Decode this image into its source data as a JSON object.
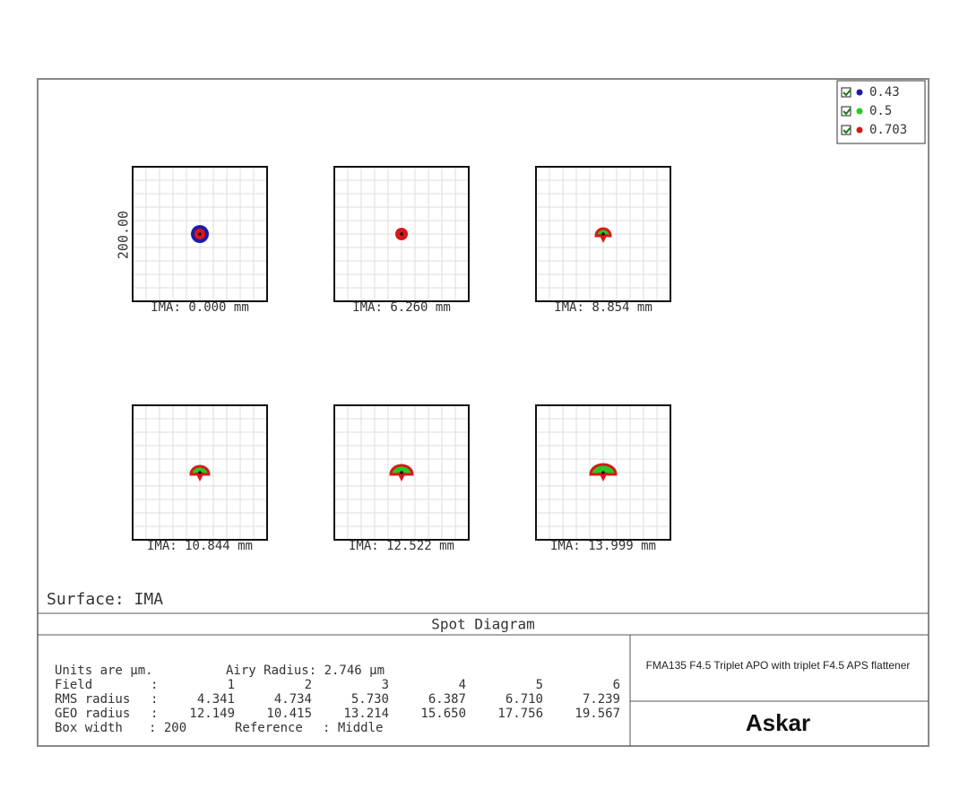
{
  "legend": [
    {
      "label": "0.43",
      "color": "#1c1ca8"
    },
    {
      "label": "0.5",
      "color": "#22cc22"
    },
    {
      "label": "0.703",
      "color": "#d81818"
    }
  ],
  "axis_label": "200.00",
  "panels": [
    "IMA: 0.000 mm",
    "IMA: 6.260 mm",
    "IMA: 8.854 mm",
    "IMA: 10.844 mm",
    "IMA: 12.522 mm",
    "IMA: 13.999 mm"
  ],
  "surface": "Surface: IMA",
  "title": "Spot Diagram",
  "stats": [
    [
      "Units are µm.",
      "Airy Radius: 2.746 µm"
    ],
    [
      "Field",
      ":",
      "1",
      "2",
      "3",
      "4",
      "5",
      "6"
    ],
    [
      "RMS radius",
      ":",
      "4.341",
      "4.734",
      "5.730",
      "6.387",
      "6.710",
      "7.239"
    ],
    [
      "GEO radius",
      ":",
      "12.149",
      "10.415",
      "13.214",
      "15.650",
      "17.756",
      "19.567"
    ],
    [
      "Box width",
      ": 200",
      "Reference",
      ": Middle"
    ]
  ],
  "description": "FMA135 F4.5 Triplet APO with triplet F4.5 APS flattener",
  "logo": "Askar"
}
